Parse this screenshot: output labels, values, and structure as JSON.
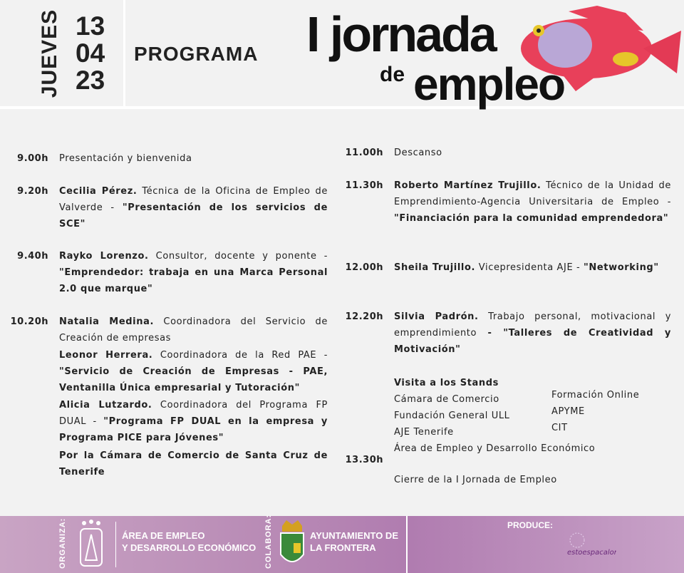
{
  "header": {
    "weekday": "JUEVES",
    "day": "13",
    "month": "04",
    "year": "23",
    "program_label": "PROGRAMA",
    "title_line1": "I jornada",
    "title_line2a": "de",
    "title_line2b": "empleo"
  },
  "schedule_left": [
    {
      "time": "9.00h",
      "parts": [
        {
          "t": "Presentación y bienvenida",
          "b": false
        }
      ]
    },
    {
      "time": "9.20h",
      "parts": [
        {
          "t": "Cecilia Pérez.",
          "b": true
        },
        {
          "t": " Técnica de la Oficina de Empleo de Valverde - ",
          "b": false
        },
        {
          "t": "\"Presentación de los servicios de SCE\"",
          "b": true
        }
      ]
    },
    {
      "time": "9.40h",
      "parts": [
        {
          "t": "Rayko Lorenzo.",
          "b": true
        },
        {
          "t": " Consultor, docente y ponente - ",
          "b": false
        },
        {
          "t": "\"Emprendedor: trabaja en una Marca Personal 2.0 que marque\"",
          "b": true
        }
      ]
    },
    {
      "time": "10.20h",
      "parts": [
        {
          "t": "Natalia Medina.",
          "b": true
        },
        {
          "t": " Coordinadora del Servicio de Creación de empresas",
          "b": false
        }
      ]
    },
    {
      "time": "",
      "parts": [
        {
          "t": "Leonor Herrera.",
          "b": true
        },
        {
          "t": " Coordinadora de la Red PAE - ",
          "b": false
        },
        {
          "t": "\"Servicio de Creación de Empresas - PAE, Ventanilla Única empresarial y Tutoración\"",
          "b": true
        }
      ]
    },
    {
      "time": "",
      "parts": [
        {
          "t": "Alicia Lutzardo.",
          "b": true
        },
        {
          "t": " Coordinadora del Programa FP DUAL - ",
          "b": false
        },
        {
          "t": "\"Programa FP DUAL en la empresa y Programa PICE para Jóvenes\"",
          "b": true
        }
      ]
    },
    {
      "time": "",
      "parts": [
        {
          "t": "Por la Cámara de Comercio de Santa Cruz de Tenerife",
          "b": true
        }
      ]
    }
  ],
  "schedule_right": [
    {
      "time": "11.00h",
      "parts": [
        {
          "t": "Descanso",
          "b": false
        }
      ]
    },
    {
      "time": "11.30h",
      "parts": [
        {
          "t": "Roberto Martínez Trujillo.",
          "b": true
        },
        {
          "t": " Técnico de la Unidad de Emprendimiento-Agencia Universitaria de Empleo - ",
          "b": false
        },
        {
          "t": "\"Financiación para la comunidad emprendedora\"",
          "b": true
        }
      ]
    },
    {
      "time": "12.00h",
      "parts": [
        {
          "t": "Sheila Trujillo.",
          "b": true
        },
        {
          "t": " Vicepresidenta AJE - ",
          "b": false
        },
        {
          "t": "\"Networking\"",
          "b": true
        }
      ]
    },
    {
      "time": "12.20h",
      "parts": [
        {
          "t": "Silvia Padrón.",
          "b": true
        },
        {
          "t": " Trabajo personal, motivacional y emprendimiento ",
          "b": false
        },
        {
          "t": "- \"Talleres de Creatividad y Motivación\"",
          "b": true
        }
      ]
    }
  ],
  "stands": {
    "title": "Visita a los Stands",
    "col1": [
      "Cámara de Comercio",
      "Fundación General ULL",
      "AJE Tenerife"
    ],
    "col2": [
      "Formación Online",
      "APYME",
      "CIT"
    ],
    "last": "Área de Empleo y Desarrollo Económico"
  },
  "closing": {
    "time": "13.30h",
    "text": "Cierre de la I Jornada de Empleo"
  },
  "footer": {
    "organiza": "ORGANIZA:",
    "cabildo_seal": "CABILDO EL HIERRO",
    "area_line1": "ÁREA DE EMPLEO",
    "area_line2": "Y DESARROLLO ECONÓMICO",
    "colabora": "COLABORA:",
    "ayto_line1": "AYUNTAMIENTO DE",
    "ayto_line2": "LA FRONTERA",
    "produce": "PRODUCE:",
    "producer_logo": "estoespacalor"
  },
  "colors": {
    "background": "#f2f2f2",
    "footer": "#b88ab5",
    "fish_body": "#e8405a"
  }
}
